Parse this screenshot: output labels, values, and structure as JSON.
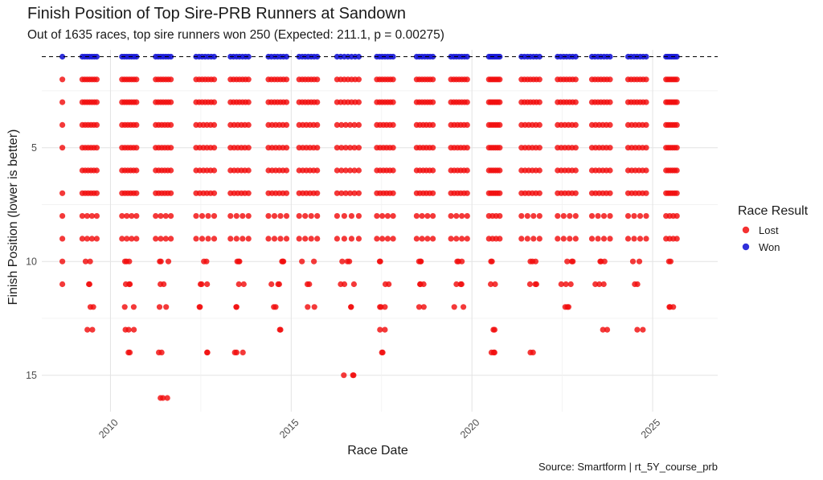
{
  "title": "Finish Position of Top Sire-PRB Runners at Sandown",
  "subtitle": "Out of 1635 races, top sire runners won 250 (Expected: 211.1, p = 0.00275)",
  "caption": "Source: Smartform | rt_5Y_course_prb",
  "chart_data": {
    "type": "scatter",
    "title": "Finish Position of Top Sire-PRB Runners at Sandown",
    "subtitle": "Out of 1635 races, top sire runners won 250 (Expected: 211.1, p = 0.00275)",
    "xlabel": "Race Date",
    "ylabel": "Finish Position (lower is better)",
    "x_ticks": [
      "2010",
      "2015",
      "2020",
      "2025"
    ],
    "y_ticks": [
      5,
      10,
      15
    ],
    "xlim": [
      2008.1,
      2026.8
    ],
    "ylim": [
      16.6,
      0.7
    ],
    "y_reversed": true,
    "reference_line": {
      "y": 1,
      "style": "dashed"
    },
    "grid": true,
    "legend": {
      "title": "Race Result",
      "placement": "right",
      "entries": [
        {
          "label": "Lost",
          "color": "#f20d0d"
        },
        {
          "label": "Won",
          "color": "#1a1ad6"
        }
      ]
    },
    "colors": {
      "Lost": "#f20d0d",
      "Won": "#1a1ad6"
    },
    "meetings": [
      {
        "range": [
          2008.67,
          2008.67
        ],
        "positions": [
          1,
          2,
          3,
          4,
          5,
          7,
          8,
          9,
          10,
          11
        ]
      },
      {
        "range": [
          2009.22,
          2009.62
        ],
        "positions": [
          1,
          2,
          3,
          4,
          5,
          6,
          7,
          8,
          9,
          10,
          11,
          12,
          13
        ]
      },
      {
        "range": [
          2010.32,
          2010.72
        ],
        "positions": [
          1,
          2,
          3,
          4,
          5,
          6,
          7,
          8,
          9,
          10,
          11,
          12,
          13,
          14
        ]
      },
      {
        "range": [
          2011.25,
          2011.67
        ],
        "positions": [
          1,
          2,
          3,
          4,
          5,
          6,
          7,
          8,
          9,
          10,
          11,
          12,
          14,
          16
        ]
      },
      {
        "range": [
          2012.37,
          2012.87
        ],
        "positions": [
          1,
          2,
          3,
          4,
          5,
          6,
          7,
          8,
          9,
          10,
          11,
          12,
          14
        ]
      },
      {
        "range": [
          2013.32,
          2013.82
        ],
        "positions": [
          1,
          2,
          3,
          4,
          5,
          6,
          7,
          8,
          9,
          10,
          11,
          12,
          14
        ]
      },
      {
        "range": [
          2014.37,
          2014.87
        ],
        "positions": [
          1,
          2,
          3,
          4,
          5,
          6,
          7,
          8,
          9,
          10,
          11,
          12,
          13
        ]
      },
      {
        "range": [
          2015.22,
          2015.72
        ],
        "positions": [
          1,
          2,
          3,
          4,
          5,
          6,
          7,
          8,
          9,
          10,
          11,
          12
        ]
      },
      {
        "range": [
          2016.27,
          2016.87
        ],
        "positions": [
          1,
          2,
          3,
          4,
          5,
          6,
          7,
          8,
          9,
          10,
          11,
          12,
          15
        ]
      },
      {
        "range": [
          2017.37,
          2017.82
        ],
        "positions": [
          1,
          2,
          3,
          4,
          5,
          6,
          7,
          8,
          9,
          10,
          11,
          12,
          13,
          14
        ]
      },
      {
        "range": [
          2018.47,
          2018.92
        ],
        "positions": [
          1,
          2,
          3,
          4,
          5,
          6,
          7,
          8,
          9,
          10,
          11,
          12
        ]
      },
      {
        "range": [
          2019.42,
          2019.87
        ],
        "positions": [
          1,
          2,
          3,
          4,
          5,
          6,
          7,
          8,
          9,
          10,
          11,
          12
        ]
      },
      {
        "range": [
          2020.47,
          2020.77
        ],
        "positions": [
          1,
          2,
          3,
          4,
          5,
          6,
          7,
          8,
          9,
          10,
          11,
          13,
          14
        ]
      },
      {
        "range": [
          2021.37,
          2021.87
        ],
        "positions": [
          1,
          2,
          3,
          4,
          5,
          6,
          7,
          8,
          9,
          10,
          11,
          14
        ]
      },
      {
        "range": [
          2022.37,
          2022.87
        ],
        "positions": [
          1,
          2,
          3,
          4,
          5,
          6,
          7,
          8,
          9,
          10,
          11,
          12
        ]
      },
      {
        "range": [
          2023.32,
          2023.82
        ],
        "positions": [
          1,
          2,
          3,
          4,
          5,
          6,
          7,
          8,
          9,
          10,
          11,
          13
        ]
      },
      {
        "range": [
          2024.32,
          2024.82
        ],
        "positions": [
          1,
          2,
          3,
          4,
          5,
          6,
          7,
          8,
          9,
          10,
          11,
          13
        ]
      },
      {
        "range": [
          2025.37,
          2025.67
        ],
        "positions": [
          1,
          2,
          3,
          4,
          5,
          6,
          7,
          8,
          9,
          10,
          12
        ]
      }
    ]
  }
}
